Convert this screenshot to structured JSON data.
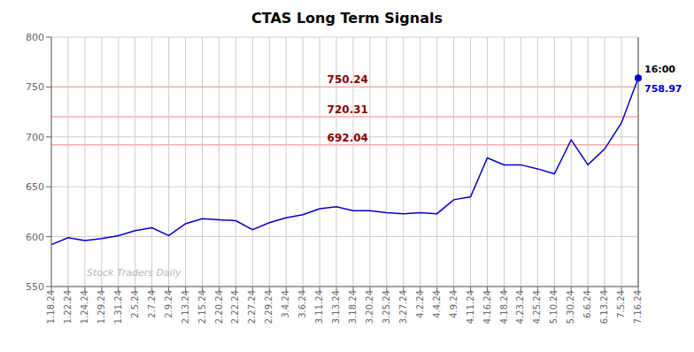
{
  "chart_data": {
    "type": "line",
    "title": "CTAS Long Term Signals",
    "categories": [
      "1.18.24",
      "1.22.24",
      "1.24.24",
      "1.29.24",
      "1.31.24",
      "2.5.24",
      "2.7.24",
      "2.9.24",
      "2.13.24",
      "2.15.24",
      "2.20.24",
      "2.22.24",
      "2.27.24",
      "2.29.24",
      "3.4.24",
      "3.6.24",
      "3.11.24",
      "3.13.24",
      "3.18.24",
      "3.20.24",
      "3.25.24",
      "3.27.24",
      "4.2.24",
      "4.4.24",
      "4.9.24",
      "4.11.24",
      "4.16.24",
      "4.18.24",
      "4.23.24",
      "4.25.24",
      "5.10.24",
      "5.30.24",
      "6.6.24",
      "6.13.24",
      "7.5.24",
      "7.16.24"
    ],
    "values": [
      592,
      599,
      596,
      598,
      601,
      606,
      609,
      601,
      613,
      618,
      617,
      616,
      607,
      614,
      619,
      622,
      628,
      630,
      626,
      626,
      624,
      623,
      624,
      623,
      637,
      640,
      679,
      672,
      672,
      668,
      663,
      697,
      672,
      688,
      714,
      759
    ],
    "color": "#0000cc",
    "ylim": [
      550,
      800
    ],
    "yticks": [
      550,
      600,
      650,
      700,
      750,
      800
    ],
    "grid": true,
    "reference_lines": [
      {
        "y": 750.24,
        "label": "750.24",
        "color": "#ffaaaa",
        "label_color": "#8b0000"
      },
      {
        "y": 720.31,
        "label": "720.31",
        "color": "#ffaaaa",
        "label_color": "#8b0000"
      },
      {
        "y": 692.04,
        "label": "692.04",
        "color": "#ffaaaa",
        "label_color": "#8b0000"
      }
    ],
    "last_point": {
      "color": "#0000cc",
      "line_color": "#666666"
    },
    "annotations": [
      {
        "text": "Stock Traders Daily",
        "color": "#b8b8b8"
      },
      {
        "text": "16:00",
        "color": "#000000"
      },
      {
        "text": "758.97",
        "color": "#0000cc"
      }
    ]
  }
}
